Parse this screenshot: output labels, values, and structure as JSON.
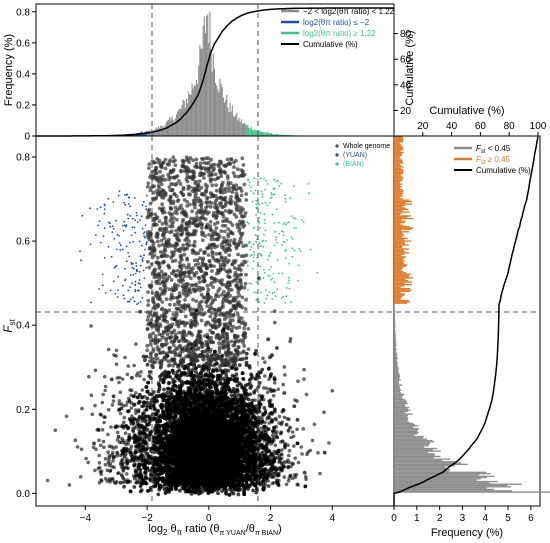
{
  "chart_data": [
    {
      "panel": "top-histogram",
      "type": "bar",
      "ylabel": "Frequency (%)",
      "ylabel_right": "Cumulative (%)",
      "ylim": [
        0,
        0.85
      ],
      "ylim_right": [
        0,
        100
      ],
      "yticks": [
        "0",
        "0.2",
        "0.4",
        "0.6",
        "0.8"
      ],
      "yticks_right": [
        "20",
        "40",
        "60",
        "80"
      ],
      "legend": {
        "position": "top-right",
        "entries": [
          {
            "label": "−2 < log2(θπ ratio) < 1.22",
            "color": "#8c8c8c"
          },
          {
            "label": "log2(θπ ratio) ≤ −2",
            "color": "#1f4fa8"
          },
          {
            "label": "log2(θπ ratio) ≥ 1.22",
            "color": "#3fc48a"
          },
          {
            "label": "Cumulative (%)",
            "color": "#000000"
          }
        ]
      },
      "distribution": {
        "x_range": [
          -5.6,
          6.0
        ],
        "peak_x": -0.05,
        "peak_value": 0.81,
        "left_cut": -2,
        "right_cut": 1.22
      }
    },
    {
      "panel": "scatter",
      "type": "scatter",
      "xlabel": "log2 θπ ratio (θπ YUAN/θπ BIAN)",
      "ylabel": "Fst",
      "xlim": [
        -5.6,
        6.0
      ],
      "ylim": [
        -0.03,
        0.85
      ],
      "xticks": [
        "−4",
        "−2",
        "0",
        "2",
        "4"
      ],
      "yticks": [
        "0.0",
        "0.2",
        "0.4",
        "0.6",
        "0.8"
      ],
      "thresholds": {
        "x": [
          -2,
          1.22
        ],
        "y": 0.45
      },
      "legend": {
        "position": "top-right",
        "entries": [
          {
            "label": "Whole genome",
            "color": "#4d4d4d"
          },
          {
            "label": "(YUAN)",
            "color": "#1f4fa8"
          },
          {
            "label": "(BIAN)",
            "color": "#3fc48a"
          }
        ]
      }
    },
    {
      "panel": "right-histogram",
      "type": "bar",
      "xlabel": "Frequency (%)",
      "xlabel_top": "Cumulative (%)",
      "xlim": [
        0,
        6.4
      ],
      "xticks": [
        "0",
        "1",
        "2",
        "3",
        "4",
        "5",
        "6"
      ],
      "xticks_top": [
        "20",
        "40",
        "60",
        "80",
        "100"
      ],
      "legend": {
        "position": "top-right",
        "entries": [
          {
            "label": "Fst < 0.45",
            "color": "#8c8c8c"
          },
          {
            "label": "Fst ≥ 0.45",
            "color": "#e07b2a"
          },
          {
            "label": "Cumulative (%)",
            "color": "#000000"
          }
        ]
      }
    }
  ]
}
